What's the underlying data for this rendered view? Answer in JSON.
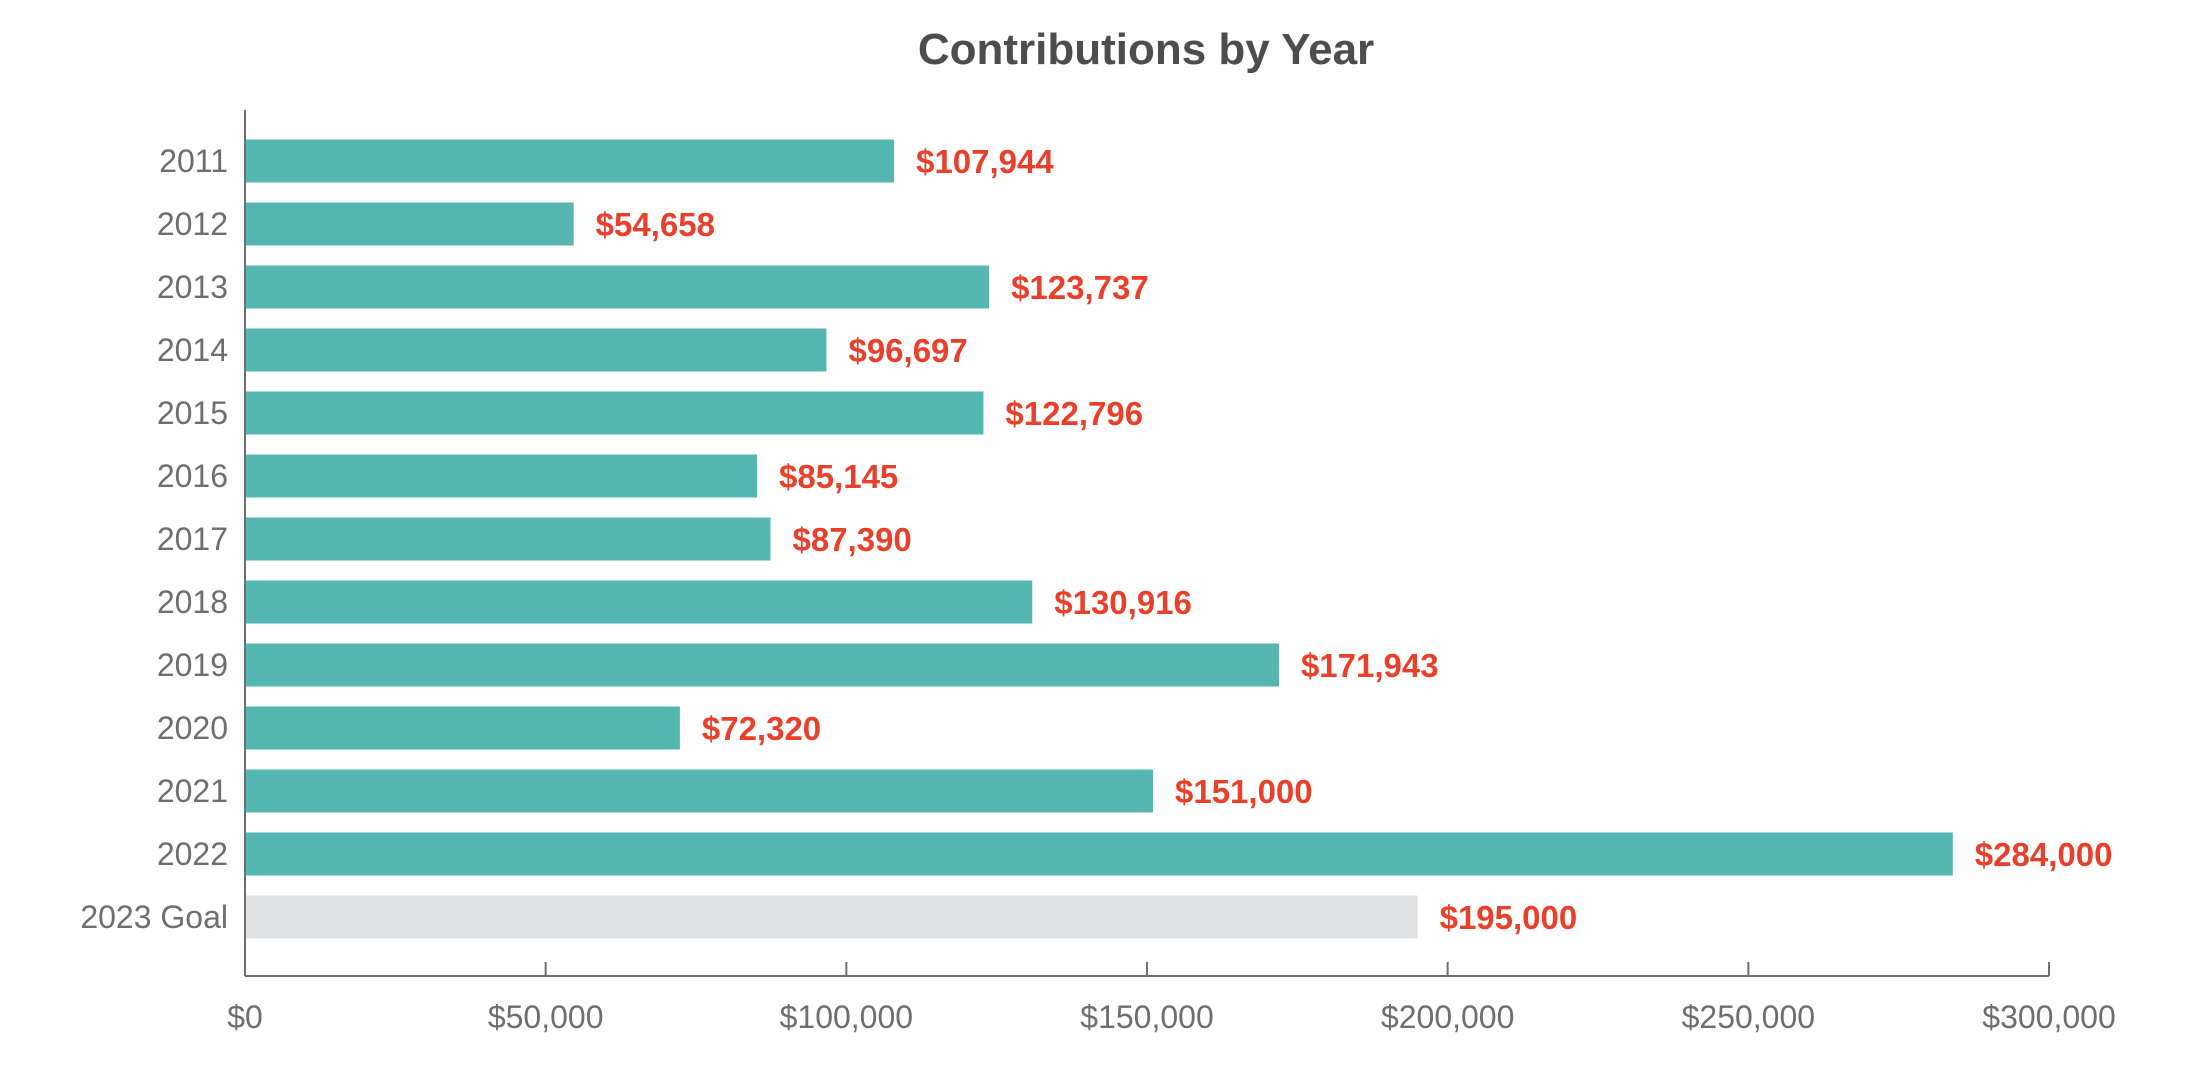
{
  "chart_data": {
    "type": "bar",
    "orientation": "horizontal",
    "title": "Contributions by Year",
    "xlabel": "",
    "ylabel": "",
    "categories": [
      "2011",
      "2012",
      "2013",
      "2014",
      "2015",
      "2016",
      "2017",
      "2018",
      "2019",
      "2020",
      "2021",
      "2022",
      "2023 Goal"
    ],
    "values": [
      107944,
      54658,
      123737,
      96697,
      122796,
      85145,
      87390,
      130916,
      171943,
      72320,
      151000,
      284000,
      195000
    ],
    "value_labels": [
      "$107,944",
      "$54,658",
      "$123,737",
      "$96,697",
      "$122,796",
      "$85,145",
      "$87,390",
      "$130,916",
      "$171,943",
      "$72,320",
      "$151,000",
      "$284,000",
      "$195,000"
    ],
    "highlight_category": "2023 Goal",
    "xlim": [
      0,
      300000
    ],
    "x_ticks": [
      0,
      50000,
      100000,
      150000,
      200000,
      250000,
      300000
    ],
    "x_tick_labels": [
      "$0",
      "$50,000",
      "$100,000",
      "$150,000",
      "$200,000",
      "$250,000",
      "$300,000"
    ],
    "grid": false,
    "colors": {
      "bar": "#56b6b2",
      "goal_bar": "#e0e1e3",
      "value_label": "#e8402b",
      "axis": "#6d6e71",
      "title": "#4d4d4f"
    }
  }
}
